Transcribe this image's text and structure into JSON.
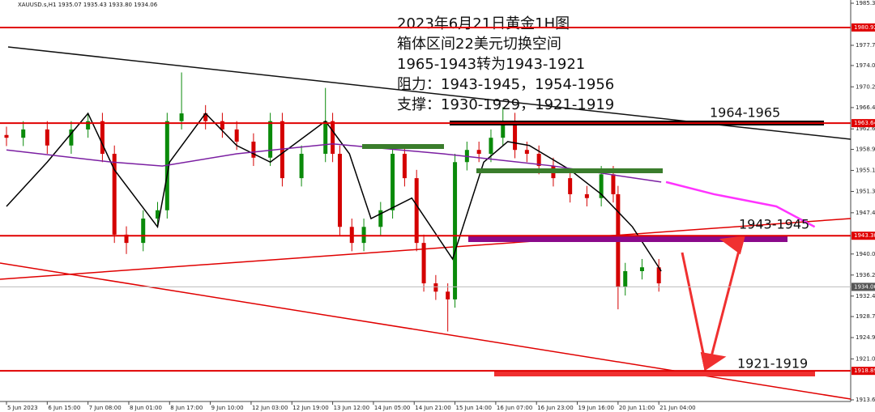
{
  "chart_data": {
    "type": "candlestick",
    "header": "XAUUSD.s,H1  1935.07 1935.43 1933.80 1934.06",
    "title_lines": [
      "2023年6月21日黄金1H图",
      "箱体区间22美元切换空间",
      "1965-1943转为1943-1921",
      "阻力：1943-1945，1954-1956",
      "支撑：1930-1929，1921-1919"
    ],
    "annotations": [
      "1964-1965",
      "1943-1945",
      "1921-1919"
    ],
    "up_color": "#0a8a0a",
    "down_color": "#d40000",
    "x": [
      0,
      7,
      17,
      27,
      34,
      40,
      45,
      50,
      57,
      63,
      67,
      73,
      83,
      90,
      96,
      103,
      110,
      115,
      123,
      133,
      136,
      139,
      144,
      149,
      156,
      161,
      166,
      171,
      174,
      179,
      184,
      187,
      192,
      197,
      202,
      207,
      212,
      217,
      222,
      228,
      235,
      242,
      248,
      253,
      255,
      258,
      265,
      272
    ],
    "open": [
      1961.5,
      1961.0,
      1962.5,
      1959.6,
      1962.5,
      1964.0,
      1958.1,
      1943.5,
      1942.0,
      1946.4,
      1947.9,
      1964.0,
      1965.4,
      1964.0,
      1962.5,
      1960.3,
      1957.4,
      1964.0,
      1953.7,
      1958.1,
      1964.0,
      1958.1,
      1944.9,
      1942.0,
      1944.9,
      1947.9,
      1958.1,
      1953.7,
      1942.0,
      1934.7,
      1933.2,
      1931.8,
      1956.6,
      1958.8,
      1958.1,
      1961.0,
      1964.0,
      1958.8,
      1958.1,
      1955.9,
      1953.7,
      1950.8,
      1950.1,
      1954.4,
      1950.8,
      1934.0,
      1936.9,
      1937.6
    ],
    "high": [
      1963.0,
      1964.0,
      1964.0,
      1964.0,
      1965.5,
      1965.5,
      1959.6,
      1945.0,
      1947.9,
      1949.4,
      1965.5,
      1972.8,
      1966.9,
      1965.5,
      1964.0,
      1961.8,
      1965.5,
      1965.5,
      1959.6,
      1970.0,
      1965.5,
      1959.6,
      1946.4,
      1946.4,
      1949.4,
      1959.6,
      1959.6,
      1955.2,
      1943.5,
      1936.2,
      1934.7,
      1958.1,
      1960.3,
      1960.3,
      1962.5,
      1966.5,
      1965.5,
      1960.3,
      1959.6,
      1957.4,
      1955.2,
      1952.3,
      1955.9,
      1955.9,
      1952.3,
      1938.4,
      1939.1,
      1939.1
    ],
    "low": [
      1959.5,
      1959.5,
      1958.1,
      1958.1,
      1961.0,
      1956.6,
      1942.0,
      1940.0,
      1940.5,
      1944.9,
      1946.4,
      1962.5,
      1962.5,
      1961.0,
      1958.8,
      1955.9,
      1955.9,
      1952.2,
      1952.2,
      1956.6,
      1956.6,
      1943.4,
      1940.5,
      1940.5,
      1943.4,
      1946.4,
      1952.2,
      1940.5,
      1933.2,
      1931.7,
      1926.0,
      1930.3,
      1955.1,
      1956.6,
      1956.6,
      1959.5,
      1957.3,
      1956.6,
      1954.4,
      1952.2,
      1949.3,
      1948.6,
      1948.6,
      1949.3,
      1930.0,
      1932.5,
      1935.4,
      1933.2
    ],
    "close": [
      1961.0,
      1962.5,
      1959.6,
      1962.5,
      1964.0,
      1958.1,
      1943.5,
      1942.0,
      1946.4,
      1947.9,
      1964.0,
      1965.4,
      1964.0,
      1962.5,
      1960.3,
      1957.4,
      1964.0,
      1953.7,
      1958.1,
      1964.0,
      1958.1,
      1944.9,
      1942.0,
      1944.9,
      1947.9,
      1958.1,
      1953.7,
      1942.0,
      1934.7,
      1933.2,
      1931.8,
      1956.6,
      1958.8,
      1958.1,
      1961.0,
      1964.0,
      1958.8,
      1958.1,
      1955.9,
      1953.7,
      1950.8,
      1950.1,
      1954.4,
      1950.8,
      1934.0,
      1936.9,
      1937.6,
      1934.7
    ],
    "overlays": [
      {
        "color": "#000000",
        "x": [
          0,
          17,
          34,
          45,
          63,
          68,
          83,
          96,
          110,
          133,
          143,
          152,
          169,
          186,
          199,
          209,
          218,
          235,
          248,
          261,
          273
        ],
        "values": [
          1948.6,
          1956.6,
          1965.4,
          1955.2,
          1944.9,
          1956.6,
          1965.4,
          1959.6,
          1956.6,
          1964.0,
          1958.1,
          1946.4,
          1950.1,
          1939.1,
          1956.6,
          1960.3,
          1959.6,
          1955.2,
          1950.8,
          1944.9,
          1936.9
        ]
      },
      {
        "color": "#7b1fa2",
        "x": [
          0,
          44,
          65,
          96,
          136,
          182,
          228,
          273
        ],
        "values": [
          1958.8,
          1956.6,
          1955.9,
          1958.1,
          1959.9,
          1958.1,
          1955.9,
          1953.0
        ]
      },
      {
        "color": "#ff33ff",
        "x": [
          275,
          295,
          321,
          337
        ],
        "values": [
          1953.0,
          1950.8,
          1948.6,
          1944.9
        ]
      }
    ],
    "levels": [
      {
        "value": 1980.92,
        "color": "#e00000"
      },
      {
        "value": 1963.64,
        "color": "#e00000"
      },
      {
        "value": 1943.3,
        "label": "1943.30",
        "color": "#e00000"
      },
      {
        "value": 1934.06,
        "color": "#555555"
      },
      {
        "value": 1918.89,
        "color": "#e00000"
      }
    ],
    "xlim": [
      -2.7,
      352
    ],
    "ylim": [
      1913.65,
      1985.3
    ],
    "xticks": [
      {
        "value": 0,
        "label": "5 Jun 2023"
      },
      {
        "value": 17,
        "label": "6 Jun 15:00"
      },
      {
        "value": 34,
        "label": "7 Jun 08:00"
      },
      {
        "value": 51,
        "label": "8 Jun 01:00"
      },
      {
        "value": 68,
        "label": "8 Jun 17:00"
      },
      {
        "value": 85,
        "label": "9 Jun 10:00"
      },
      {
        "value": 102,
        "label": "12 Jun 03:00"
      },
      {
        "value": 119,
        "label": "12 Jun 19:00"
      },
      {
        "value": 136,
        "label": "13 Jun 12:00"
      },
      {
        "value": 153,
        "label": "14 Jun 05:00"
      },
      {
        "value": 170,
        "label": "14 Jun 21:00"
      },
      {
        "value": 187,
        "label": "15 Jun 14:00"
      },
      {
        "value": 204,
        "label": "16 Jun 07:00"
      },
      {
        "value": 221,
        "label": "16 Jun 23:00"
      },
      {
        "value": 238,
        "label": "19 Jun 16:00"
      },
      {
        "value": 255,
        "label": "20 Jun 11:00"
      },
      {
        "value": 272,
        "label": "21 Jun 04:00"
      }
    ],
    "yticks": [
      {
        "value": 1985.3,
        "label": "1985.30"
      },
      {
        "value": 1977.7,
        "label": "1977.70"
      },
      {
        "value": 1974.05,
        "label": "1974.05"
      },
      {
        "value": 1970.2,
        "label": "1970.20"
      },
      {
        "value": 1966.45,
        "label": "1966.45"
      },
      {
        "value": 1962.6,
        "label": "1962.60"
      },
      {
        "value": 1958.9,
        "label": "1958.90"
      },
      {
        "value": 1955.1,
        "label": "1955.10"
      },
      {
        "value": 1951.3,
        "label": "1951.30"
      },
      {
        "value": 1947.45,
        "label": "1947.45"
      },
      {
        "value": 1940.0,
        "label": "1940.00"
      },
      {
        "value": 1936.2,
        "label": "1936.20"
      },
      {
        "value": 1932.4,
        "label": "1932.40"
      },
      {
        "value": 1928.7,
        "label": "1928.70"
      },
      {
        "value": 1924.9,
        "label": "1924.90"
      },
      {
        "value": 1921.05,
        "label": "1921.05"
      },
      {
        "value": 1913.65,
        "label": "1913.65"
      }
    ]
  }
}
